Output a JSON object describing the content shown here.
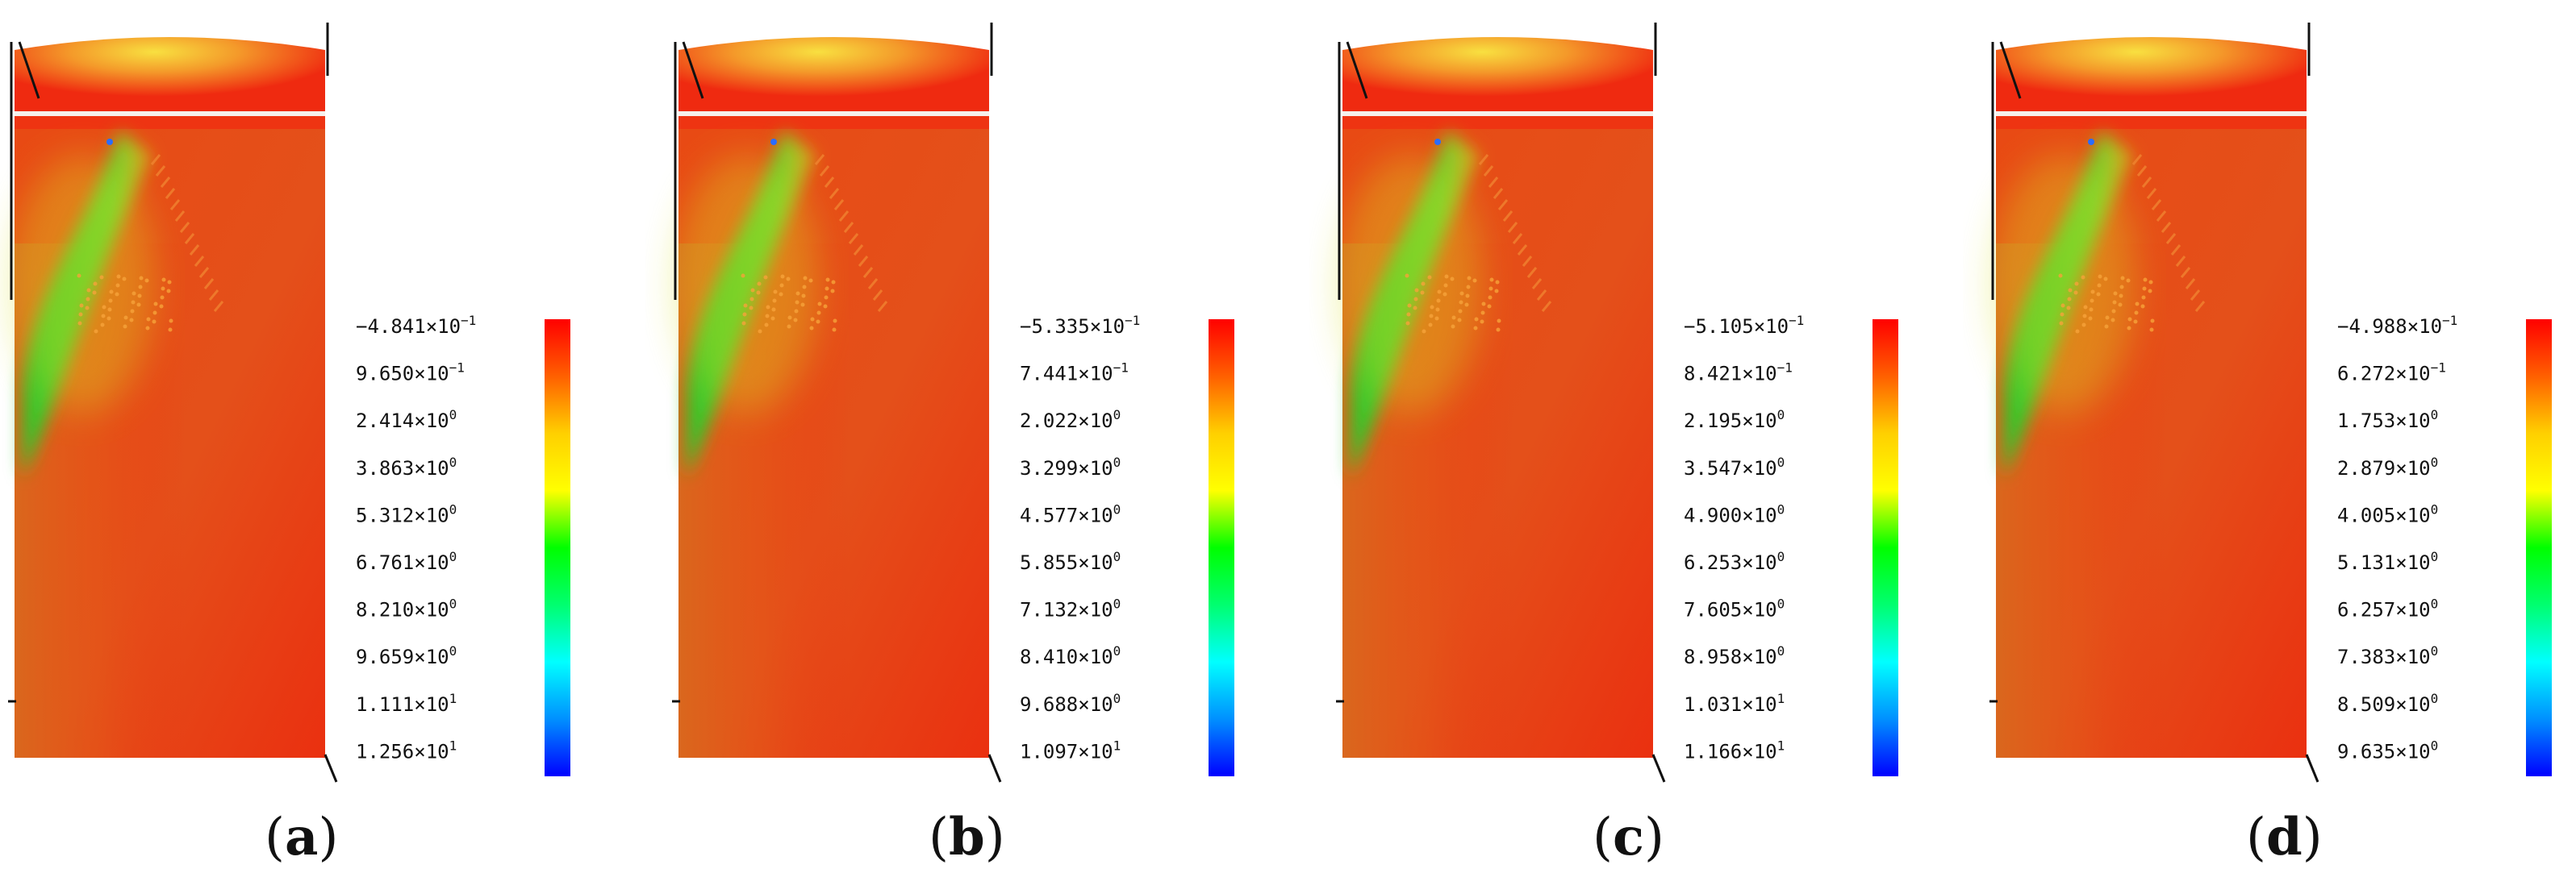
{
  "figure": {
    "panels": [
      {
        "id": "a",
        "caption": {
          "open": "(",
          "letter": "a",
          "close": ")"
        },
        "scale_labels": [
          "−4.841×10",
          "9.650×10",
          "2.414×10",
          "3.863×10",
          "5.312×10",
          "6.761×10",
          "8.210×10",
          "9.659×10",
          "1.111×10",
          "1.256×10"
        ],
        "scale_exponents": [
          "−1",
          "−1",
          "0",
          "0",
          "0",
          "0",
          "0",
          "0",
          "1",
          "1"
        ]
      },
      {
        "id": "b",
        "caption": {
          "open": "(",
          "letter": "b",
          "close": ")"
        },
        "scale_labels": [
          "−5.335×10",
          "7.441×10",
          "2.022×10",
          "3.299×10",
          "4.577×10",
          "5.855×10",
          "7.132×10",
          "8.410×10",
          "9.688×10",
          "1.097×10"
        ],
        "scale_exponents": [
          "−1",
          "−1",
          "0",
          "0",
          "0",
          "0",
          "0",
          "0",
          "0",
          "1"
        ]
      },
      {
        "id": "c",
        "caption": {
          "open": "(",
          "letter": "c",
          "close": ")"
        },
        "scale_labels": [
          "−5.105×10",
          "8.421×10",
          "2.195×10",
          "3.547×10",
          "4.900×10",
          "6.253×10",
          "7.605×10",
          "8.958×10",
          "1.031×10",
          "1.166×10"
        ],
        "scale_exponents": [
          "−1",
          "−1",
          "0",
          "0",
          "0",
          "0",
          "0",
          "0",
          "1",
          "1"
        ]
      },
      {
        "id": "d",
        "caption": {
          "open": "(",
          "letter": "d",
          "close": ")"
        },
        "scale_labels": [
          "−4.988×10",
          "6.272×10",
          "1.753×10",
          "2.879×10",
          "4.005×10",
          "5.131×10",
          "6.257×10",
          "7.383×10",
          "8.509×10",
          "9.635×10"
        ],
        "scale_exponents": [
          "−1",
          "−1",
          "0",
          "0",
          "0",
          "0",
          "0",
          "0",
          "0",
          "0"
        ]
      }
    ],
    "colormap": [
      "#ff0000",
      "#ff6000",
      "#ffd000",
      "#ffff00",
      "#00ff00",
      "#00ff70",
      "#00ffff",
      "#0090ff",
      "#0000ff"
    ],
    "contour_colors": {
      "base": "#ec3a12",
      "top_cap": "#ef2a10",
      "green": "#2fc62a",
      "yellow": "#d9e020",
      "orange_dark": "#d0551a",
      "speckle": "#f6a23a"
    }
  }
}
